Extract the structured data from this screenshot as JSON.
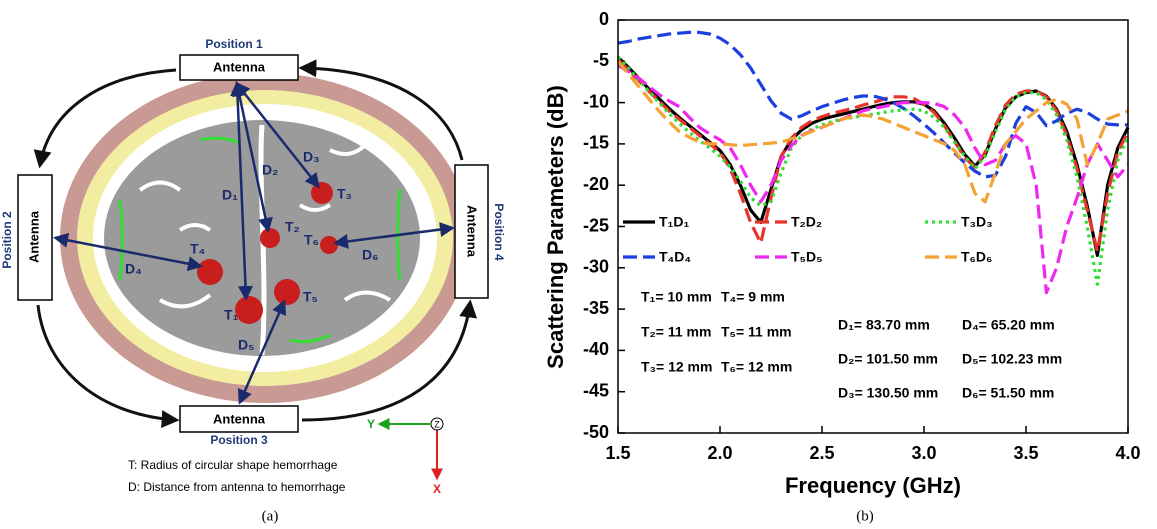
{
  "diagram": {
    "positions": [
      "Position 1",
      "Position 2",
      "Position 3",
      "Position 4"
    ],
    "antennas": [
      "Antenna",
      "Antenna",
      "Antenna",
      "Antenna"
    ],
    "labels": [
      "T₁",
      "T₂",
      "T₃",
      "T₄",
      "T₅",
      "T₆",
      "D₁",
      "D₂",
      "D₃",
      "D₄",
      "D₅",
      "D₆"
    ],
    "axes": [
      "Y",
      "Z",
      "X"
    ],
    "legend": [
      "T: Radius of circular shape hemorrhage",
      "D: Distance from antenna to hemorrhage"
    ],
    "caption": "(a)"
  },
  "chart_data": {
    "type": "line",
    "caption": "(b)",
    "xlabel": "Frequency (GHz)",
    "ylabel": "Scattering Parameters (dB)",
    "x": [
      1.5,
      1.55,
      1.6,
      1.65,
      1.7,
      1.75,
      1.8,
      1.85,
      1.9,
      1.95,
      2.0,
      2.05,
      2.1,
      2.15,
      2.2,
      2.25,
      2.3,
      2.35,
      2.4,
      2.45,
      2.5,
      2.55,
      2.6,
      2.65,
      2.7,
      2.75,
      2.8,
      2.85,
      2.9,
      2.95,
      3.0,
      3.05,
      3.1,
      3.15,
      3.2,
      3.25,
      3.3,
      3.35,
      3.4,
      3.45,
      3.5,
      3.55,
      3.6,
      3.65,
      3.7,
      3.75,
      3.8,
      3.85,
      3.9,
      3.95,
      4.0
    ],
    "xlim": [
      1.5,
      4.0
    ],
    "xticks": [
      1.5,
      {
        "value": 2,
        "label": "2.0"
      },
      2.5,
      {
        "value": 3,
        "label": "3.0"
      },
      3.5,
      {
        "value": 4,
        "label": "4.0"
      }
    ],
    "ylim": [
      -50,
      0
    ],
    "yticks": [
      0,
      -5,
      -10,
      -15,
      -20,
      -25,
      -30,
      -35,
      -40,
      -45,
      -50
    ],
    "grid": false,
    "series": [
      {
        "name": "T₁D₁",
        "color": "#000000",
        "dash": "solid",
        "values": [
          -4.5,
          -5.7,
          -7,
          -8.3,
          -9.5,
          -10.7,
          -11.8,
          -12.8,
          -13.8,
          -14.8,
          -15.8,
          -17.5,
          -20,
          -23,
          -24.5,
          -20.5,
          -16.5,
          -14.5,
          -13.3,
          -12.5,
          -12,
          -11.7,
          -11.4,
          -11.1,
          -10.8,
          -10.5,
          -10.2,
          -10,
          -9.9,
          -9.9,
          -10.2,
          -11,
          -12.5,
          -14.3,
          -16.3,
          -17.7,
          -16.3,
          -13.2,
          -10.6,
          -9.3,
          -8.8,
          -8.6,
          -9.2,
          -10.8,
          -13.5,
          -17.5,
          -22.5,
          -28.5,
          -20,
          -15.5,
          -13
        ]
      },
      {
        "name": "T₂D₂",
        "color": "#e8332a",
        "dash": "dashed",
        "values": [
          -4.8,
          -6,
          -7.3,
          -8.6,
          -9.8,
          -11,
          -12,
          -13,
          -14,
          -15,
          -16,
          -18,
          -21,
          -24.5,
          -27,
          -21.5,
          -16.5,
          -14.3,
          -13,
          -12.2,
          -11.7,
          -11.3,
          -11,
          -10.7,
          -10.3,
          -10,
          -9.6,
          -9.3,
          -9.3,
          -9.5,
          -10.2,
          -11.2,
          -12.8,
          -14.7,
          -16.7,
          -17.8,
          -16,
          -12.8,
          -10.3,
          -9,
          -8.6,
          -8.6,
          -9.3,
          -11,
          -14,
          -18,
          -23,
          -28,
          -21,
          -16,
          -13.5
        ]
      },
      {
        "name": "T₃D₃",
        "color": "#33dd33",
        "dash": "dotted",
        "values": [
          -4.5,
          -5.8,
          -7.2,
          -8.6,
          -10,
          -11.3,
          -12.5,
          -13.6,
          -14.6,
          -15.5,
          -16.5,
          -17.8,
          -19.5,
          -21.5,
          -22.5,
          -22,
          -18.5,
          -15.5,
          -14,
          -13.2,
          -12.7,
          -12.3,
          -12,
          -11.8,
          -11.6,
          -11.4,
          -11.2,
          -11,
          -10.9,
          -10.8,
          -11,
          -11.8,
          -13,
          -14.8,
          -16.5,
          -18,
          -16.5,
          -13.5,
          -10.8,
          -9.3,
          -8.8,
          -8.8,
          -9.6,
          -11.5,
          -14.5,
          -19,
          -25,
          -32,
          -23,
          -17,
          -14
        ]
      },
      {
        "name": "T₄D₄",
        "color": "#1c3fe0",
        "dash": "dashed",
        "values": [
          -2.8,
          -2.6,
          -2.3,
          -2.1,
          -1.9,
          -1.7,
          -1.6,
          -1.5,
          -1.5,
          -1.7,
          -2.2,
          -3,
          -4.2,
          -5.8,
          -7.8,
          -9.8,
          -11.3,
          -12,
          -11.6,
          -11,
          -10.5,
          -10.1,
          -9.7,
          -9.4,
          -9.2,
          -9.2,
          -9.5,
          -10,
          -10.7,
          -11.6,
          -12.6,
          -13.7,
          -14.9,
          -16.1,
          -17.3,
          -18.3,
          -19,
          -18.8,
          -16.5,
          -12.5,
          -10.5,
          -11.2,
          -12.8,
          -12.2,
          -11.3,
          -10.8,
          -11.2,
          -12,
          -12.6,
          -12.7,
          -12.7
        ]
      },
      {
        "name": "T₅D₅",
        "color": "#ee28ee",
        "dash": "dashed",
        "values": [
          -5.5,
          -6.2,
          -7,
          -8,
          -9,
          -9.8,
          -10.5,
          -11.8,
          -13,
          -13.8,
          -14.5,
          -15.5,
          -17.5,
          -20,
          -22,
          -20,
          -17,
          -15.2,
          -14,
          -13.4,
          -13,
          -12.5,
          -12,
          -11.5,
          -11,
          -10.7,
          -10.5,
          -10.2,
          -10,
          -10,
          -10,
          -10.1,
          -10.5,
          -11.5,
          -13,
          -15.5,
          -17.5,
          -17,
          -15,
          -14,
          -15,
          -20,
          -33,
          -30,
          -25,
          -21.5,
          -17.5,
          -15,
          -17,
          -19,
          -17.5
        ]
      },
      {
        "name": "T₆D₆",
        "color": "#f6a133",
        "dash": "dashed",
        "values": [
          -5,
          -6.5,
          -8,
          -9.5,
          -11,
          -12.3,
          -13.5,
          -14.2,
          -14.8,
          -15,
          -15,
          -15.1,
          -15.2,
          -15.1,
          -15,
          -14.9,
          -14.8,
          -14.4,
          -14,
          -13.5,
          -13,
          -12.5,
          -12,
          -11.7,
          -11.5,
          -11.7,
          -12,
          -12.5,
          -13,
          -13.5,
          -14,
          -14.5,
          -15,
          -15.8,
          -17.5,
          -21,
          -22,
          -18.5,
          -15,
          -13.5,
          -12,
          -11,
          -10,
          -9.6,
          -10.2,
          -12,
          -17.5,
          -15,
          -12,
          -11.5,
          -11
        ]
      }
    ],
    "annotations": [
      "T₁= 10 mm",
      "T₄= 9 mm",
      "T₂= 11 mm",
      "T₅= 11 mm",
      "T₃= 12 mm",
      "T₆= 12 mm",
      "D₁= 83.70 mm",
      "D₄= 65.20 mm",
      "D₂= 101.50 mm",
      "D₅= 102.23 mm",
      "D₃= 130.50 mm",
      "D₆= 51.50 mm"
    ]
  }
}
